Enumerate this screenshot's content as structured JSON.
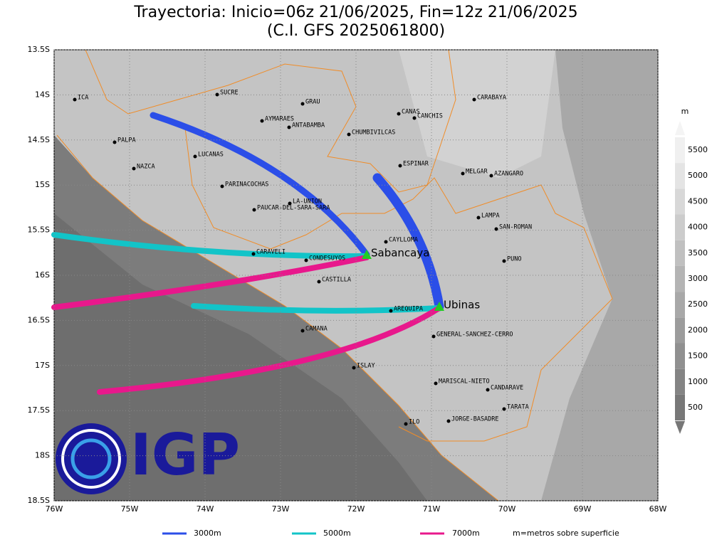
{
  "title": [
    "Trayectoria: Inicio=06z 21/06/2025, Fin=12z 21/06/2025",
    "(C.I. GFS 2025061800)"
  ],
  "lat_ticks": [
    {
      "value": -13.5,
      "label": "13.5S"
    },
    {
      "value": -14,
      "label": "14S"
    },
    {
      "value": -14.5,
      "label": "14.5S"
    },
    {
      "value": -15,
      "label": "15S"
    },
    {
      "value": -15.5,
      "label": "15.5S"
    },
    {
      "value": -16,
      "label": "16S"
    },
    {
      "value": -16.5,
      "label": "16.5S"
    },
    {
      "value": -17,
      "label": "17S"
    },
    {
      "value": -17.5,
      "label": "17.5S"
    },
    {
      "value": -18,
      "label": "18S"
    },
    {
      "value": -18.5,
      "label": "18.5S"
    }
  ],
  "lon_ticks": [
    {
      "value": -76,
      "label": "76W"
    },
    {
      "value": -75,
      "label": "75W"
    },
    {
      "value": -74,
      "label": "74W"
    },
    {
      "value": -73,
      "label": "73W"
    },
    {
      "value": -72,
      "label": "72W"
    },
    {
      "value": -71,
      "label": "71W"
    },
    {
      "value": -70,
      "label": "70W"
    },
    {
      "value": -69,
      "label": "69W"
    },
    {
      "value": -68,
      "label": "68W"
    }
  ],
  "colorbar": {
    "unit": "m",
    "ticks": [
      500,
      1000,
      1500,
      2000,
      2500,
      3000,
      3500,
      4000,
      4500,
      5000,
      5500
    ]
  },
  "places": [
    "ICA",
    "SUCRE",
    "GRAU",
    "CANAS",
    "CANCHIS",
    "CARABAYA",
    "AYMARAES",
    "ANTABAMBA",
    "CHUMBIVILCAS",
    "PALPA",
    "LUCANAS",
    "NAZCA",
    "ESPINAR",
    "MELGAR",
    "AZANGARO",
    "PARINACOCHAS",
    "LA-UNION",
    "PAUCAR-DEL-SARA-SARA",
    "LAMPA",
    "SAN-ROMAN",
    "CAYLLOMA",
    "CARAVELI",
    "CONDESUYOS",
    "PUNO",
    "CASTILLA",
    "AREQUIPA",
    "GENERAL-SANCHEZ-CERRO",
    "CAMANA",
    "ISLAY",
    "MARISCAL-NIETO",
    "CANDARAVE",
    "TARATA",
    "ILO",
    "JORGE-BASADRE"
  ],
  "volcanoes": [
    "Sabancaya",
    "Ubinas"
  ],
  "legend": [
    {
      "label": "3000m",
      "color": "#2b4ee8"
    },
    {
      "label": "5000m",
      "color": "#12c4c8"
    },
    {
      "label": "7000m",
      "color": "#e8188c"
    }
  ],
  "legend_note": "m=metros sobre superficie",
  "logo": "IGP"
}
